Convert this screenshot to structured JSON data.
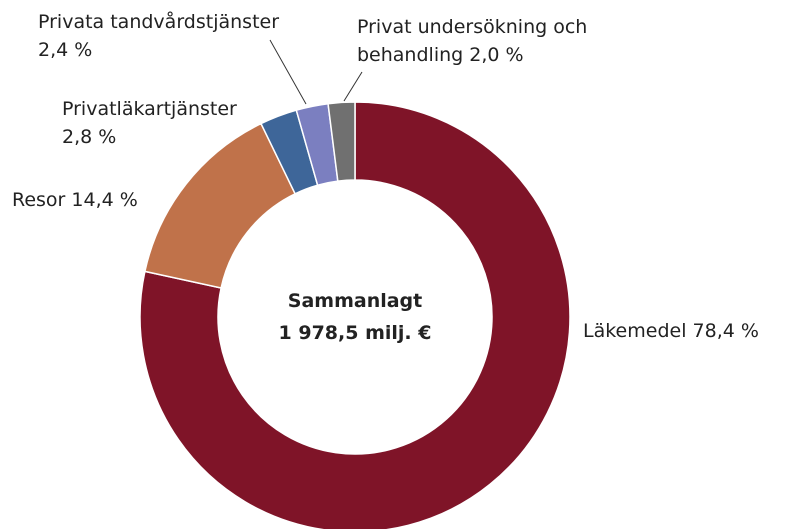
{
  "chart_data": {
    "type": "donut",
    "categories": [
      "Läkemedel",
      "Resor",
      "Privatläkartjänster",
      "Privata tandvårdstjänster",
      "Privat undersökning och behandling"
    ],
    "values": [
      78.4,
      14.4,
      2.8,
      2.4,
      2.0
    ],
    "value_labels": [
      "78,4 %",
      "14,4 %",
      "2,8 %",
      "2,4 %",
      "2,0 %"
    ],
    "colors": [
      "#7f1428",
      "#c0724a",
      "#3e6699",
      "#7b7fc0",
      "#707070"
    ],
    "center_label": [
      "Sammanlagt",
      "1 978,5 milj. €"
    ]
  }
}
